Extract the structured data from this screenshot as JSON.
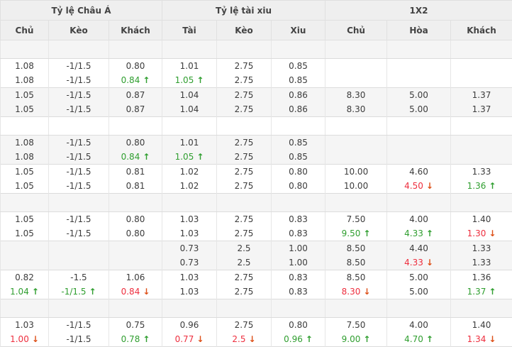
{
  "header": {
    "groups": [
      {
        "label": "Tỷ lệ Châu Á",
        "cols": [
          "Chủ",
          "Kèo",
          "Khách"
        ]
      },
      {
        "label": "Tỷ lệ tài xiu",
        "cols": [
          "Tài",
          "Kèo",
          "Xiu"
        ]
      },
      {
        "label": "1X2",
        "cols": [
          "Chủ",
          "Hòa",
          "Khách"
        ]
      }
    ]
  },
  "icons": {
    "up_glyph": "↑",
    "down_glyph": "↓"
  },
  "colors": {
    "green": "#2f9e2f",
    "red": "#ee2e3e",
    "red_arrow": "#dd4f17",
    "header_bg": "#efefef",
    "row_alt_bg": "#f5f5f5"
  },
  "rows": [
    {
      "type": "spacer",
      "shade": "gray"
    },
    {
      "type": "odds",
      "shade": "white",
      "first": true,
      "cells": [
        "1.08",
        "-1/1.5",
        "0.80",
        "1.01",
        "2.75",
        "0.85",
        "",
        "",
        ""
      ]
    },
    {
      "type": "odds",
      "shade": "white",
      "first": false,
      "cells": [
        "1.08",
        "-1/1.5",
        "0.84|u",
        "1.05|u",
        "2.75",
        "0.85",
        "",
        "",
        ""
      ]
    },
    {
      "type": "odds",
      "shade": "gray",
      "first": true,
      "cells": [
        "1.05",
        "-1/1.5",
        "0.87",
        "1.04",
        "2.75",
        "0.86",
        "8.30",
        "5.00",
        "1.37"
      ]
    },
    {
      "type": "odds",
      "shade": "gray",
      "first": false,
      "cells": [
        "1.05",
        "-1/1.5",
        "0.87",
        "1.04",
        "2.75",
        "0.86",
        "8.30",
        "5.00",
        "1.37"
      ]
    },
    {
      "type": "spacer",
      "shade": "white"
    },
    {
      "type": "odds",
      "shade": "gray",
      "first": true,
      "cells": [
        "1.08",
        "-1/1.5",
        "0.80",
        "1.01",
        "2.75",
        "0.85",
        "",
        "",
        ""
      ]
    },
    {
      "type": "odds",
      "shade": "gray",
      "first": false,
      "cells": [
        "1.08",
        "-1/1.5",
        "0.84|u",
        "1.05|u",
        "2.75",
        "0.85",
        "",
        "",
        ""
      ]
    },
    {
      "type": "odds",
      "shade": "white",
      "first": true,
      "cells": [
        "1.05",
        "-1/1.5",
        "0.81",
        "1.02",
        "2.75",
        "0.80",
        "10.00",
        "4.60",
        "1.33"
      ]
    },
    {
      "type": "odds",
      "shade": "white",
      "first": false,
      "cells": [
        "1.05",
        "-1/1.5",
        "0.81",
        "1.02",
        "2.75",
        "0.80",
        "10.00",
        "4.50|d",
        "1.36|u"
      ]
    },
    {
      "type": "spacer",
      "shade": "gray"
    },
    {
      "type": "odds",
      "shade": "white",
      "first": true,
      "cells": [
        "1.05",
        "-1/1.5",
        "0.80",
        "1.03",
        "2.75",
        "0.83",
        "7.50",
        "4.00",
        "1.40"
      ]
    },
    {
      "type": "odds",
      "shade": "white",
      "first": false,
      "cells": [
        "1.05",
        "-1/1.5",
        "0.80",
        "1.03",
        "2.75",
        "0.83",
        "9.50|u",
        "4.33|u",
        "1.30|d"
      ]
    },
    {
      "type": "odds",
      "shade": "gray",
      "first": true,
      "cells": [
        "",
        "",
        "",
        "0.73",
        "2.5",
        "1.00",
        "8.50",
        "4.40",
        "1.33"
      ]
    },
    {
      "type": "odds",
      "shade": "gray",
      "first": false,
      "cells": [
        "",
        "",
        "",
        "0.73",
        "2.5",
        "1.00",
        "8.50",
        "4.33|d",
        "1.33"
      ]
    },
    {
      "type": "odds",
      "shade": "white",
      "first": true,
      "cells": [
        "0.82",
        "-1.5",
        "1.06",
        "1.03",
        "2.75",
        "0.83",
        "8.50",
        "5.00",
        "1.36"
      ]
    },
    {
      "type": "odds",
      "shade": "white",
      "first": false,
      "cells": [
        "1.04|u",
        "-1/1.5|u",
        "0.84|d",
        "1.03",
        "2.75",
        "0.83",
        "8.30|d",
        "5.00",
        "1.37|u"
      ]
    },
    {
      "type": "spacer",
      "shade": "gray"
    },
    {
      "type": "odds",
      "shade": "white",
      "first": true,
      "cells": [
        "1.03",
        "-1/1.5",
        "0.75",
        "0.96",
        "2.75",
        "0.80",
        "7.50",
        "4.00",
        "1.40"
      ]
    },
    {
      "type": "odds",
      "shade": "white",
      "first": false,
      "cells": [
        "1.00|d",
        "-1/1.5",
        "0.78|u",
        "0.77|d",
        "2.5|d",
        "0.96|u",
        "9.00|u",
        "4.70|u",
        "1.34|d"
      ]
    }
  ]
}
